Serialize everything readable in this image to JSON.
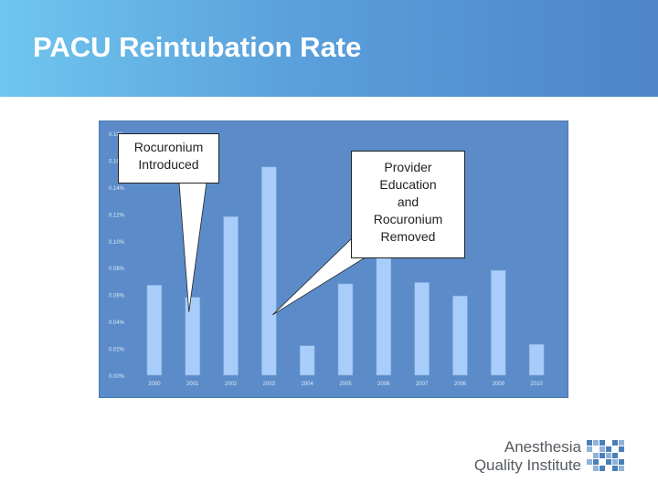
{
  "slide": {
    "title": "PACU Reintubation Rate"
  },
  "chart_data": {
    "type": "bar",
    "categories": [
      "2000",
      "2001",
      "2002",
      "2003",
      "2004",
      "2005",
      "2006",
      "2007",
      "2008",
      "2009",
      "2010"
    ],
    "values": [
      0.067,
      0.058,
      0.118,
      0.155,
      0.022,
      0.068,
      0.095,
      0.069,
      0.059,
      0.078,
      0.023
    ],
    "ylim": [
      0,
      0.18
    ],
    "y_ticks": [
      "0.00%",
      "0.02%",
      "0.04%",
      "0.06%",
      "0.08%",
      "0.10%",
      "0.12%",
      "0.14%",
      "0.16%",
      "0.18%"
    ],
    "title": "",
    "xlabel": "",
    "ylabel": "",
    "grid": false,
    "colors": {
      "plot_background": "#5b8cc9",
      "bar_fill": "#a9cdfa",
      "bar_stroke": "#7ea6d8",
      "tick_text": "#dfe8f5"
    }
  },
  "callouts": {
    "left": {
      "lines": [
        "Rocuronium",
        "Introduced"
      ],
      "points_to": "2001"
    },
    "right": {
      "lines": [
        "Provider",
        "Education",
        "and",
        "Rocuronium",
        "Removed"
      ],
      "points_to": "2003"
    }
  },
  "logo": {
    "line1": "Anesthesia",
    "line2": "Quality Institute",
    "colors": {
      "text": "#555a60",
      "squares": [
        "#4a7fb8",
        "#8fb3da"
      ]
    }
  }
}
